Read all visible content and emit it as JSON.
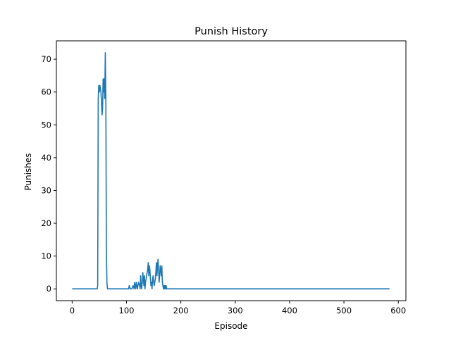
{
  "chart_data": {
    "type": "line",
    "title": "Punish History",
    "xlabel": "Episode",
    "ylabel": "Punishes",
    "xlim": [
      -29,
      614
    ],
    "ylim": [
      -3.6,
      75.6
    ],
    "xticks": [
      0,
      100,
      200,
      300,
      400,
      500,
      600
    ],
    "yticks": [
      0,
      10,
      20,
      30,
      40,
      50,
      60,
      70
    ],
    "grid": false,
    "series": [
      {
        "color": "#1f77b4",
        "points": [
          [
            0,
            0
          ],
          [
            46,
            0
          ],
          [
            47,
            1
          ],
          [
            48,
            58
          ],
          [
            49,
            62
          ],
          [
            50,
            60
          ],
          [
            51,
            62
          ],
          [
            52,
            61
          ],
          [
            53,
            60
          ],
          [
            54,
            57
          ],
          [
            55,
            53
          ],
          [
            56,
            55
          ],
          [
            57,
            64
          ],
          [
            58,
            60
          ],
          [
            59,
            64
          ],
          [
            60,
            58
          ],
          [
            61,
            72
          ],
          [
            62,
            58
          ],
          [
            63,
            12
          ],
          [
            64,
            2
          ],
          [
            65,
            0
          ],
          [
            104,
            0
          ],
          [
            105,
            1
          ],
          [
            107,
            0
          ],
          [
            110,
            0
          ],
          [
            112,
            1
          ],
          [
            114,
            0
          ],
          [
            115,
            2
          ],
          [
            117,
            0
          ],
          [
            118,
            2
          ],
          [
            120,
            0
          ],
          [
            121,
            1
          ],
          [
            122,
            2
          ],
          [
            124,
            1
          ],
          [
            125,
            0
          ],
          [
            126,
            4
          ],
          [
            127,
            1
          ],
          [
            128,
            0
          ],
          [
            129,
            2
          ],
          [
            130,
            5
          ],
          [
            131,
            3
          ],
          [
            132,
            1
          ],
          [
            133,
            4
          ],
          [
            134,
            0
          ],
          [
            135,
            2
          ],
          [
            136,
            3
          ],
          [
            138,
            5
          ],
          [
            139,
            6
          ],
          [
            140,
            8
          ],
          [
            141,
            4
          ],
          [
            142,
            7
          ],
          [
            143,
            6
          ],
          [
            144,
            3
          ],
          [
            145,
            1
          ],
          [
            146,
            2
          ],
          [
            147,
            0
          ],
          [
            148,
            3
          ],
          [
            149,
            4
          ],
          [
            150,
            2
          ],
          [
            151,
            1
          ],
          [
            152,
            2
          ],
          [
            153,
            3
          ],
          [
            154,
            5
          ],
          [
            155,
            8
          ],
          [
            156,
            4
          ],
          [
            157,
            7
          ],
          [
            158,
            9
          ],
          [
            159,
            6
          ],
          [
            160,
            2
          ],
          [
            161,
            4
          ],
          [
            162,
            7
          ],
          [
            163,
            6
          ],
          [
            164,
            4
          ],
          [
            165,
            7
          ],
          [
            166,
            2
          ],
          [
            167,
            1
          ],
          [
            168,
            0
          ],
          [
            169,
            1
          ],
          [
            170,
            0
          ],
          [
            171,
            1
          ],
          [
            172,
            0
          ],
          [
            173,
            1
          ],
          [
            174,
            0
          ],
          [
            584,
            0
          ]
        ]
      }
    ]
  }
}
